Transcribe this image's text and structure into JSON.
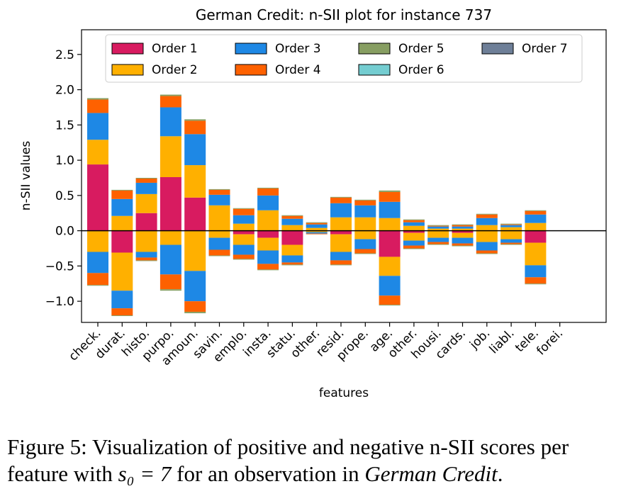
{
  "chart_data": {
    "type": "bar",
    "stacked": "diverging",
    "title": "German Credit: n-SII plot for instance 737",
    "xlabel": "features",
    "ylabel": "n-SII values",
    "ylim": [
      -1.3,
      2.85
    ],
    "yticks": [
      -1.0,
      -0.5,
      0.0,
      0.5,
      1.0,
      1.5,
      2.0,
      2.5
    ],
    "ytick_labels": [
      "−1.0",
      "−0.5",
      "0.0",
      "0.5",
      "1.0",
      "1.5",
      "2.0",
      "2.5"
    ],
    "grid": false,
    "legend_position": "top",
    "zero_line": true,
    "categories": [
      "check.",
      "durat.",
      "histo.",
      "purpo.",
      "amoun.",
      "savin.",
      "emplo.",
      "insta.",
      "statu.",
      "other.",
      "resid.",
      "prope.",
      "age.",
      "other.",
      "housi.",
      "cards.",
      "job.",
      "liabl.",
      "tele.",
      "forei."
    ],
    "series": [
      {
        "name": "Order 1",
        "color": "#d81b60",
        "pos": [
          0.94,
          0.0,
          0.25,
          0.76,
          0.47,
          0.0,
          0.0,
          0.0,
          0.0,
          0.0,
          0.0,
          0.0,
          0.0,
          0.0,
          0.0,
          0.0,
          0.0,
          0.0,
          0.0,
          0.0
        ],
        "neg": [
          0.0,
          -0.31,
          0.0,
          0.0,
          0.0,
          0.0,
          -0.05,
          -0.1,
          -0.2,
          0.0,
          -0.05,
          0.0,
          -0.37,
          -0.03,
          0.0,
          -0.03,
          0.0,
          0.0,
          -0.17,
          0.0
        ]
      },
      {
        "name": "Order 2",
        "color": "#ffb000",
        "pos": [
          0.35,
          0.21,
          0.27,
          0.58,
          0.46,
          0.36,
          0.1,
          0.29,
          0.08,
          0.04,
          0.19,
          0.19,
          0.18,
          0.07,
          0.03,
          0.03,
          0.08,
          0.05,
          0.11,
          0.0
        ],
        "neg": [
          -0.3,
          -0.54,
          -0.3,
          -0.2,
          -0.57,
          -0.1,
          -0.15,
          -0.18,
          -0.15,
          -0.02,
          -0.25,
          -0.12,
          -0.27,
          -0.11,
          -0.1,
          -0.07,
          -0.16,
          -0.12,
          -0.32,
          0.0
        ]
      },
      {
        "name": "Order 3",
        "color": "#1e88e5",
        "pos": [
          0.38,
          0.24,
          0.16,
          0.41,
          0.44,
          0.15,
          0.12,
          0.21,
          0.09,
          0.05,
          0.2,
          0.17,
          0.23,
          0.05,
          0.03,
          0.03,
          0.1,
          0.03,
          0.12,
          0.0
        ],
        "neg": [
          -0.3,
          -0.25,
          -0.08,
          -0.42,
          -0.43,
          -0.17,
          -0.14,
          -0.19,
          -0.1,
          -0.02,
          -0.12,
          -0.14,
          -0.28,
          -0.07,
          -0.06,
          -0.08,
          -0.12,
          -0.05,
          -0.17,
          0.0
        ]
      },
      {
        "name": "Order 4",
        "color": "#fe6100",
        "pos": [
          0.19,
          0.12,
          0.06,
          0.16,
          0.19,
          0.07,
          0.09,
          0.1,
          0.04,
          0.02,
          0.08,
          0.07,
          0.14,
          0.03,
          0.01,
          0.02,
          0.05,
          0.01,
          0.05,
          0.0
        ],
        "neg": [
          -0.17,
          -0.1,
          -0.04,
          -0.21,
          -0.15,
          -0.08,
          -0.06,
          -0.08,
          -0.03,
          -0.01,
          -0.06,
          -0.06,
          -0.13,
          -0.04,
          -0.03,
          -0.03,
          -0.04,
          -0.02,
          -0.09,
          0.0
        ]
      },
      {
        "name": "Order 5",
        "color": "#879e62",
        "pos": [
          0.02,
          0.01,
          0.01,
          0.02,
          0.02,
          0.01,
          0.01,
          0.01,
          0.01,
          0.01,
          0.01,
          0.01,
          0.02,
          0.01,
          0.01,
          0.01,
          0.01,
          0.01,
          0.01,
          0.0
        ],
        "neg": [
          -0.01,
          -0.01,
          -0.01,
          -0.02,
          -0.02,
          -0.01,
          -0.01,
          -0.01,
          -0.01,
          0.0,
          -0.01,
          -0.01,
          -0.01,
          -0.01,
          -0.01,
          -0.01,
          -0.01,
          -0.01,
          -0.01,
          0.0
        ]
      },
      {
        "name": "Order 6",
        "color": "#74cdd1",
        "pos": [
          0.0,
          0.0,
          0.0,
          0.0,
          0.0,
          0.0,
          0.0,
          0.0,
          0.0,
          0.0,
          0.0,
          0.0,
          0.0,
          0.0,
          0.0,
          0.0,
          0.0,
          0.0,
          0.0,
          0.0
        ],
        "neg": [
          0.0,
          0.0,
          0.0,
          0.0,
          0.0,
          0.0,
          0.0,
          0.0,
          0.0,
          0.0,
          0.0,
          0.0,
          0.0,
          0.0,
          0.0,
          0.0,
          0.0,
          0.0,
          0.0,
          0.0
        ]
      },
      {
        "name": "Order 7",
        "color": "#6e7f98",
        "pos": [
          0.0,
          0.0,
          0.0,
          0.0,
          0.0,
          0.0,
          0.0,
          0.0,
          0.0,
          0.0,
          0.0,
          0.0,
          0.0,
          0.0,
          0.0,
          0.0,
          0.0,
          0.0,
          0.0,
          0.0
        ],
        "neg": [
          0.0,
          0.0,
          0.0,
          0.0,
          0.0,
          0.0,
          0.0,
          0.0,
          0.0,
          0.0,
          0.0,
          0.0,
          0.0,
          0.0,
          0.0,
          0.0,
          0.0,
          0.0,
          0.0,
          0.0
        ]
      }
    ]
  },
  "caption": {
    "prefix": "Figure 5: Visualization of positive and negative n-SII scores per feature with ",
    "math": "s₀ = 7",
    "middle": " for an observation in ",
    "dataset": "German Credit",
    "suffix": "."
  }
}
